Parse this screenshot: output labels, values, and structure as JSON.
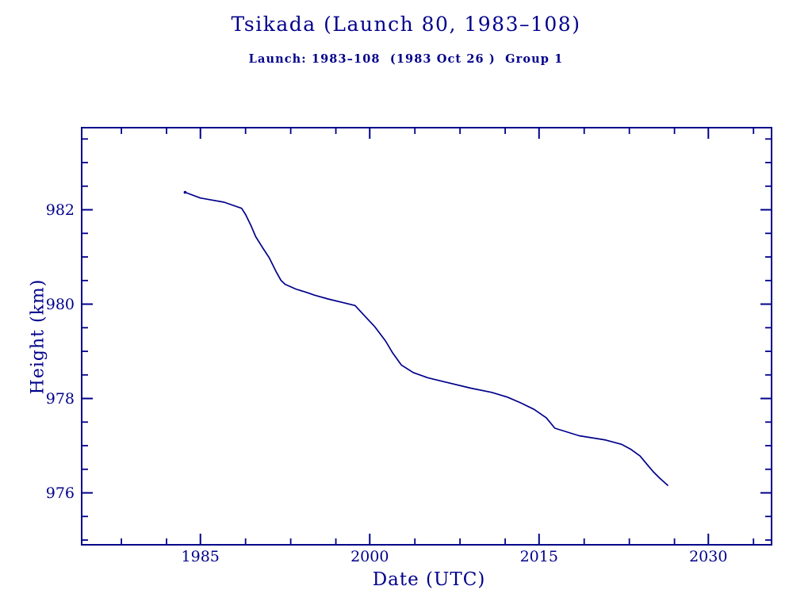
{
  "page": {
    "title": "Tsikada (Launch 80, 1983–108)",
    "subtitle": "Launch: 1983–108  (1983 Oct 26 )  Group 1"
  },
  "colors": {
    "ink": "#00008B",
    "background": "#FFFFFF"
  },
  "chart_data": {
    "type": "line",
    "title": "Tsikada (Launch 80, 1983–108)",
    "subtitle": "Launch: 1983–108  (1983 Oct 26 )  Group 1",
    "xlabel": "Date (UTC)",
    "ylabel": "Height (km)",
    "xlim": [
      1974.48,
      2035.6
    ],
    "ylim": [
      974.9,
      983.74
    ],
    "grid": false,
    "legend": null,
    "x_ticks_major": [
      {
        "value": 1985,
        "label": "1985"
      },
      {
        "value": 2000,
        "label": "2000"
      },
      {
        "value": 2015,
        "label": "2015"
      },
      {
        "value": 2030,
        "label": "2030"
      }
    ],
    "x_ticks_minor": [
      1978,
      1982,
      1989,
      1993,
      1997,
      2004,
      2008,
      2012,
      2019,
      2023,
      2027,
      2034
    ],
    "y_ticks_major": [
      {
        "value": 976,
        "label": "976"
      },
      {
        "value": 978,
        "label": "978"
      },
      {
        "value": 980,
        "label": "980"
      },
      {
        "value": 982,
        "label": "982"
      }
    ],
    "y_ticks_minor": [
      975,
      975.5,
      976.5,
      977,
      977.5,
      978.5,
      979,
      979.5,
      980.5,
      981,
      981.5,
      982.5,
      983,
      983.5
    ],
    "series": [
      {
        "name": "orbit-height",
        "x": [
          1983.64,
          1985.0,
          1987.1,
          1988.65,
          1989.0,
          1989.45,
          1989.9,
          1990.5,
          1991.1,
          1991.75,
          1992.15,
          1992.5,
          1993.45,
          1994.4,
          1995.1,
          1996.3,
          1997.7,
          1998.7,
          1999.55,
          2000.45,
          2001.4,
          2002.05,
          2002.8,
          2003.85,
          2005.15,
          2006.85,
          2008.95,
          2010.8,
          2012.2,
          2013.35,
          2014.55,
          2015.65,
          2016.4,
          2018.55,
          2020.9,
          2022.3,
          2023.15,
          2023.95,
          2024.55,
          2025.15,
          2025.7,
          2026.4
        ],
        "y": [
          982.37,
          982.25,
          982.16,
          982.03,
          981.9,
          981.68,
          981.43,
          981.2,
          980.98,
          980.67,
          980.5,
          980.42,
          980.32,
          980.25,
          980.19,
          980.11,
          980.03,
          979.97,
          979.75,
          979.52,
          979.22,
          978.96,
          978.71,
          978.55,
          978.44,
          978.34,
          978.22,
          978.13,
          978.03,
          977.91,
          977.77,
          977.59,
          977.37,
          977.21,
          977.12,
          977.03,
          976.92,
          976.78,
          976.61,
          976.44,
          976.31,
          976.16
        ]
      }
    ]
  }
}
